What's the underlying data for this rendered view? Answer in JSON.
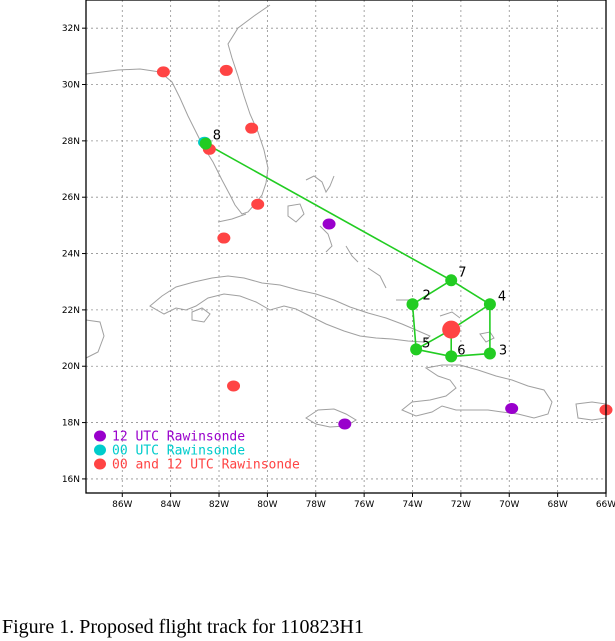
{
  "caption": "Figure 1. Proposed flight track for 110823H1",
  "map": {
    "lon_range": [
      -87.5,
      -66
    ],
    "lat_range": [
      15.5,
      33
    ],
    "lon_ticks": [
      {
        "value": -86,
        "label": "86W"
      },
      {
        "value": -84,
        "label": "84W"
      },
      {
        "value": -82,
        "label": "82W"
      },
      {
        "value": -80,
        "label": "80W"
      },
      {
        "value": -78,
        "label": "78W"
      },
      {
        "value": -76,
        "label": "76W"
      },
      {
        "value": -74,
        "label": "74W"
      },
      {
        "value": -72,
        "label": "72W"
      },
      {
        "value": -70,
        "label": "70W"
      },
      {
        "value": -68,
        "label": "68W"
      },
      {
        "value": -66,
        "label": "66W"
      }
    ],
    "lat_ticks": [
      {
        "value": 16,
        "label": "16N"
      },
      {
        "value": 18,
        "label": "18N"
      },
      {
        "value": 20,
        "label": "20N"
      },
      {
        "value": 22,
        "label": "22N"
      },
      {
        "value": 24,
        "label": "24N"
      },
      {
        "value": 26,
        "label": "26N"
      },
      {
        "value": 28,
        "label": "28N"
      },
      {
        "value": 30,
        "label": "30N"
      },
      {
        "value": 32,
        "label": "32N"
      }
    ],
    "grid": true,
    "colors": {
      "track": "#22cc22",
      "waypoint": "#22cc22",
      "storm_center": "#ff4444",
      "rawinsonde_12": "#9900cc",
      "rawinsonde_00": "#00cccc",
      "rawinsonde_both": "#ff4444",
      "coast": "#a0a0a0",
      "grid": "#909090"
    }
  },
  "flight_track": {
    "order": [
      8,
      7,
      2,
      5,
      6,
      3,
      4,
      7,
      8
    ],
    "waypoints": [
      {
        "id": "2",
        "label": "2",
        "lon": -74.0,
        "lat": 22.2
      },
      {
        "id": "3",
        "label": "3",
        "lon": -70.8,
        "lat": 20.45
      },
      {
        "id": "4",
        "label": "4",
        "lon": -70.8,
        "lat": 22.2
      },
      {
        "id": "5",
        "label": "5",
        "lon": -73.85,
        "lat": 20.6
      },
      {
        "id": "6",
        "label": "6",
        "lon": -72.4,
        "lat": 20.35
      },
      {
        "id": "7",
        "label": "7",
        "lon": -72.4,
        "lat": 23.05
      },
      {
        "id": "8",
        "label": "8",
        "lon": -82.55,
        "lat": 27.9
      }
    ],
    "storm_center": {
      "lon": -72.4,
      "lat": 21.3
    }
  },
  "rawinsondes": [
    {
      "type": "both",
      "lon": -84.3,
      "lat": 30.45
    },
    {
      "type": "both",
      "lon": -81.7,
      "lat": 30.5
    },
    {
      "type": "both",
      "lon": -80.65,
      "lat": 28.45
    },
    {
      "type": "both",
      "lon": -82.4,
      "lat": 27.7
    },
    {
      "type": "both",
      "lon": -80.4,
      "lat": 25.75
    },
    {
      "type": "both",
      "lon": -81.8,
      "lat": 24.55
    },
    {
      "type": "both",
      "lon": -81.4,
      "lat": 19.3
    },
    {
      "type": "both",
      "lon": -66.0,
      "lat": 18.45
    },
    {
      "type": "12",
      "lon": -77.45,
      "lat": 25.05
    },
    {
      "type": "12",
      "lon": -76.8,
      "lat": 17.95
    },
    {
      "type": "12",
      "lon": -69.9,
      "lat": 18.5
    },
    {
      "type": "00",
      "lon": -82.6,
      "lat": 27.95
    }
  ],
  "legend": [
    {
      "type": "12",
      "label": "12 UTC Rawinsonde"
    },
    {
      "type": "00",
      "label": "00 UTC Rawinsonde"
    },
    {
      "type": "both",
      "label": "00 and 12 UTC Rawinsonde"
    }
  ]
}
